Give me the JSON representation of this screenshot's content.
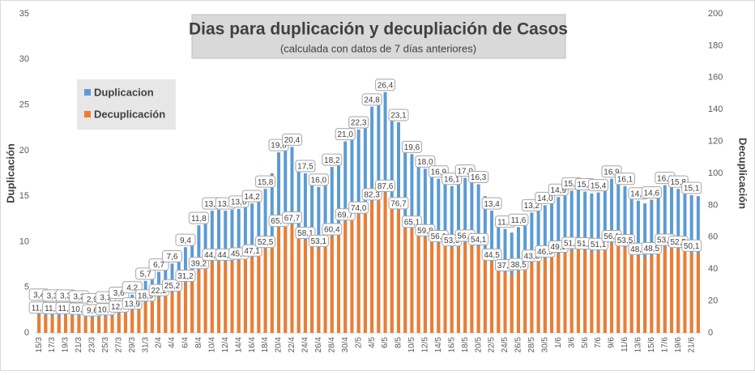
{
  "chart_data": {
    "type": "bar",
    "title": "Dias para duplicación y decupliación de Casos",
    "subtitle": "(calculada con datos de 7 días anteriores)",
    "y_label": "Duplicación",
    "y2_label": "Decuplicación",
    "ylim": [
      0,
      35
    ],
    "yticks": [
      0,
      5,
      10,
      15,
      20,
      25,
      30,
      35
    ],
    "y2lim": [
      0,
      200
    ],
    "y2ticks": [
      0,
      20,
      40,
      60,
      80,
      100,
      120,
      140,
      160,
      180,
      200
    ],
    "categories": [
      "15/3",
      null,
      "17/3",
      null,
      "19/3",
      null,
      "21/3",
      null,
      "23/3",
      null,
      "25/3",
      null,
      "27/3",
      null,
      "29/3",
      null,
      "31/3",
      null,
      "2/4",
      null,
      "4/4",
      null,
      "6/4",
      null,
      "8/4",
      null,
      "10/4",
      null,
      "12/4",
      null,
      "14/4",
      null,
      "16/4",
      null,
      "18/4",
      null,
      "20/4",
      null,
      "22/4",
      null,
      "24/4",
      null,
      "26/4",
      null,
      "28/4",
      null,
      "30/4",
      null,
      "2/5",
      null,
      "4/5",
      null,
      "6/5",
      null,
      "8/5",
      null,
      "10/5",
      null,
      "12/5",
      null,
      "14/5",
      null,
      "16/5",
      null,
      "18/5",
      null,
      "20/5",
      null,
      "22/5",
      null,
      "24/5",
      null,
      "26/5",
      null,
      "28/5",
      null,
      "30/5",
      null,
      "1/6",
      null,
      "3/6",
      null,
      "5/6",
      null,
      "7/6",
      null,
      "9/6",
      null,
      "11/6",
      null,
      "13/6",
      null,
      "15/6",
      null,
      "17/6",
      null,
      "19/6",
      null,
      "21/6",
      null
    ],
    "series": [
      {
        "name": "Duplicacion",
        "color": "#5b9bd5",
        "values": [
          3.4,
          3.3,
          3.3,
          3.2,
          3.3,
          3.3,
          3.2,
          3.0,
          2.9,
          2.9,
          3.1,
          3.1,
          3.6,
          3.7,
          4.2,
          4.9,
          5.7,
          6.2,
          6.7,
          7.0,
          7.6,
          8.5,
          9.4,
          10.5,
          11.8,
          12.8,
          13.4,
          13.5,
          13.4,
          13.5,
          13.6,
          13.9,
          14.2,
          14.9,
          15.8,
          17.5,
          19.8,
          20.1,
          20.4,
          18.5,
          17.5,
          16.5,
          16.0,
          16.6,
          18.2,
          19.5,
          21.0,
          21.6,
          22.3,
          23.5,
          24.8,
          25.4,
          26.4,
          24.5,
          23.1,
          21.0,
          19.6,
          18.8,
          18.0,
          17.3,
          16.9,
          16.5,
          16.1,
          16.6,
          17.0,
          16.8,
          16.3,
          15.0,
          13.4,
          12.2,
          11.4,
          11.0,
          11.6,
          12.4,
          13.2,
          13.6,
          14.0,
          14.4,
          14.9,
          15.3,
          15.6,
          15.8,
          15.5,
          15.3,
          15.4,
          16.0,
          16.9,
          16.6,
          16.1,
          15.0,
          14.5,
          14.2,
          14.6,
          15.2,
          16.2,
          16.4,
          15.8,
          15.4,
          15.1,
          15.0
        ],
        "value_labels": [
          "3,4",
          null,
          "3,3",
          null,
          "3,3",
          null,
          "3,2",
          null,
          "2,9",
          null,
          "3,1",
          null,
          "3,6",
          null,
          "4,2",
          null,
          "5,7",
          null,
          "6,7",
          null,
          "7,6",
          null,
          "9,4",
          null,
          "11,8",
          null,
          "13,4",
          null,
          "13,4",
          null,
          "13,6",
          null,
          "14,2",
          null,
          "15,8",
          null,
          "19,8",
          null,
          "20,4",
          null,
          "17,5",
          null,
          "16,0",
          null,
          "18,2",
          null,
          "21,0",
          null,
          "22,3",
          null,
          "24,8",
          null,
          "26,4",
          null,
          "23,1",
          null,
          "19,6",
          null,
          "18,0",
          null,
          "16,9",
          null,
          "16,1",
          null,
          "17,0",
          null,
          "16,3",
          null,
          "13,4",
          null,
          "11,4",
          null,
          "11,6",
          null,
          "13,2",
          null,
          "14,0",
          null,
          "14,9",
          null,
          "15,6",
          null,
          "15,5",
          null,
          "15,4",
          null,
          "16,9",
          null,
          "16,1",
          null,
          "14,5",
          null,
          "14,6",
          null,
          "16,2",
          null,
          "15,8",
          null,
          "15,1",
          null
        ]
      },
      {
        "name": "Decuplicación",
        "color": "#ed7d31",
        "axis": "y2",
        "values": [
          11.3,
          11.0,
          11.0,
          10.6,
          11.0,
          11.0,
          10.6,
          10.0,
          9.6,
          9.6,
          10.3,
          10.3,
          12.0,
          12.3,
          13.9,
          16.3,
          18.9,
          20.6,
          22.2,
          23.2,
          25.2,
          28.2,
          31.2,
          34.9,
          39.2,
          42.5,
          44.5,
          44.8,
          44.5,
          44.8,
          45.2,
          46.1,
          47.1,
          49.5,
          52.5,
          58.1,
          65.7,
          66.7,
          67.7,
          61.4,
          58.1,
          54.8,
          53.1,
          55.1,
          60.4,
          64.7,
          69.7,
          71.7,
          74.0,
          78.0,
          82.3,
          84.3,
          87.6,
          81.3,
          76.7,
          69.7,
          65.1,
          62.4,
          59.8,
          57.4,
          56.1,
          54.8,
          53.5,
          55.1,
          56.4,
          55.8,
          54.1,
          49.8,
          44.5,
          40.5,
          37.8,
          36.5,
          38.5,
          41.2,
          43.8,
          45.2,
          46.5,
          47.8,
          49.5,
          50.8,
          51.8,
          52.5,
          51.5,
          50.8,
          51.1,
          53.1,
          56.1,
          55.1,
          53.5,
          49.8,
          48.1,
          47.1,
          48.5,
          50.5,
          53.8,
          54.4,
          52.5,
          51.1,
          50.1,
          49.8
        ],
        "value_labels": [
          "11,3",
          null,
          "11,0",
          null,
          "11,0",
          null,
          "10,6",
          null,
          "9,6",
          null,
          "10,3",
          null,
          "12,0",
          null,
          "13,9",
          null,
          "18,9",
          null,
          "22,2",
          null,
          "25,2",
          null,
          "31,2",
          null,
          "39,2",
          null,
          "44,5",
          null,
          "44,5",
          null,
          "45,2",
          null,
          "47,1",
          null,
          "52,5",
          null,
          "65,7",
          null,
          "67,7",
          null,
          "58,1",
          null,
          "53,1",
          null,
          "60,4",
          null,
          "69,7",
          null,
          "74,0",
          null,
          "82,3",
          null,
          "87,6",
          null,
          "76,7",
          null,
          "65,1",
          null,
          "59,8",
          null,
          "56,1",
          null,
          "53,5",
          null,
          "56,4",
          null,
          "54,1",
          null,
          "44,5",
          null,
          "37,8",
          null,
          "38,5",
          null,
          "43,8",
          null,
          "46,5",
          null,
          "49,5",
          null,
          "51,8",
          null,
          "51,5",
          null,
          "51,1",
          null,
          "56,1",
          null,
          "53,5",
          null,
          "48,1",
          null,
          "48,5",
          null,
          "53,8",
          null,
          "52,5",
          null,
          "50,1",
          null
        ]
      }
    ]
  }
}
